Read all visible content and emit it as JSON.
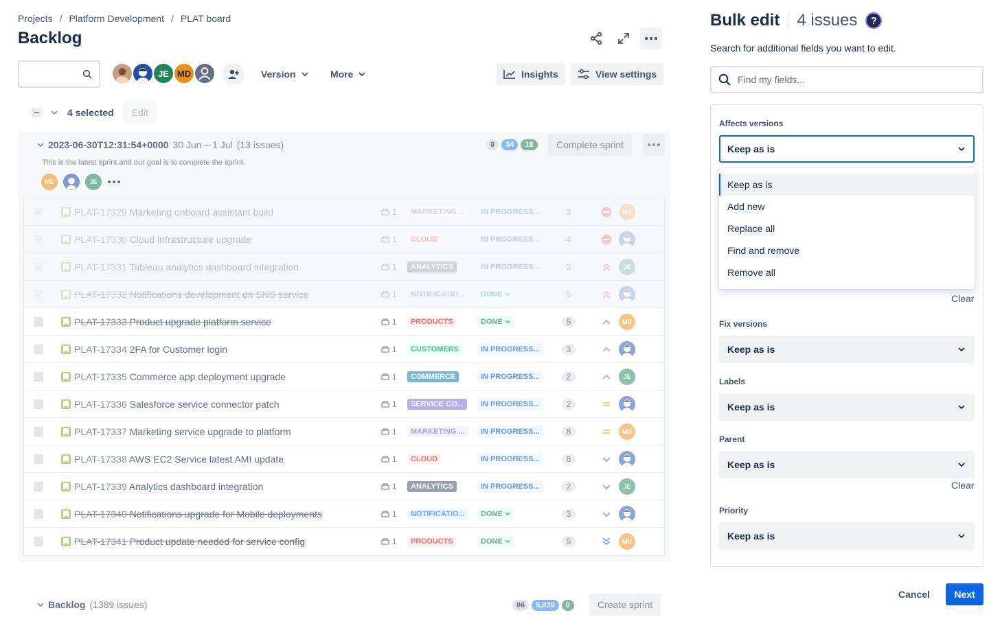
{
  "breadcrumb": [
    "Projects",
    "Platform Development",
    "PLAT board"
  ],
  "page_title": "Backlog",
  "toolbar": {
    "version_label": "Version",
    "more_label": "More",
    "insights_label": "Insights",
    "view_settings_label": "View settings"
  },
  "people": [
    {
      "initials": "",
      "color": "#c69d7d",
      "icon": "photo-avatar"
    },
    {
      "initials": "",
      "color": "#1e4fa8",
      "icon": "illustrated-avatar"
    },
    {
      "initials": "JE",
      "color": "#1f845a"
    },
    {
      "initials": "MD",
      "color": "#f18d13"
    },
    {
      "initials": "",
      "color": "#626f86",
      "icon": "unassigned-avatar"
    }
  ],
  "selection": {
    "count_label": "4 selected",
    "edit_label": "Edit"
  },
  "sprint": {
    "name": "2023-06-30T12:31:54+0000",
    "dates": "30 Jun – 1 Jul",
    "issue_count": "(13 issues)",
    "goal": "This is the latest sprint and our goal is to complete the sprint.",
    "avatars": [
      "MD",
      "",
      "JE"
    ],
    "counts": {
      "todo": "0",
      "in_progress": "34",
      "done": "18"
    },
    "complete_label": "Complete sprint"
  },
  "issues": [
    {
      "key": "PLAT-17329",
      "summary": "Marketing onboard assistant build",
      "points": "1",
      "label": "MARKETING ...",
      "label_style": "purple-light",
      "status": "IN PROGRESS...",
      "status_type": "progress",
      "estimate": "3",
      "priority": "blocker",
      "assignee": "MD",
      "selected": true,
      "done": false
    },
    {
      "key": "PLAT-17330",
      "summary": "Cloud infrastructure upgrade",
      "points": "1",
      "label": "CLOUD",
      "label_style": "red-light",
      "status": "IN PROGRESS...",
      "status_type": "progress",
      "estimate": "4",
      "priority": "blocker",
      "assignee": "",
      "selected": true,
      "done": false
    },
    {
      "key": "PLAT-17331",
      "summary": "Tableau analytics dashboard integration",
      "points": "1",
      "label": "ANALYTICS",
      "label_style": "grey-bold",
      "status": "IN PROGRESS...",
      "status_type": "progress",
      "estimate": "2",
      "priority": "highest",
      "assignee": "JE",
      "selected": true,
      "done": false
    },
    {
      "key": "PLAT-17332",
      "summary": "Notifications development on SNS service",
      "points": "1",
      "label": "NOTIFICATIO...",
      "label_style": "blue-light",
      "status": "DONE",
      "status_type": "done",
      "estimate": "5",
      "priority": "highest",
      "assignee": "",
      "selected": true,
      "done": true
    },
    {
      "key": "PLAT-17333",
      "summary": "Product upgrade platform service",
      "points": "1",
      "label": "PRODUCTS",
      "label_style": "red-light",
      "status": "DONE",
      "status_type": "done",
      "estimate": "5",
      "priority": "high",
      "assignee": "MD",
      "selected": false,
      "done": true
    },
    {
      "key": "PLAT-17334",
      "summary": "2FA for Customer login",
      "points": "1",
      "label": "CUSTOMERS",
      "label_style": "green-light",
      "status": "IN PROGRESS...",
      "status_type": "progress",
      "estimate": "3",
      "priority": "high",
      "assignee": "",
      "selected": false,
      "done": false
    },
    {
      "key": "PLAT-17335",
      "summary": "Commerce app deployment upgrade",
      "points": "1",
      "label": "COMMERCE",
      "label_style": "teal-bold",
      "status": "IN PROGRESS...",
      "status_type": "progress",
      "estimate": "2",
      "priority": "high",
      "assignee": "JE",
      "selected": false,
      "done": false
    },
    {
      "key": "PLAT-17336",
      "summary": "Salesforce service connector patch",
      "points": "1",
      "label": "SERVICE CO...",
      "label_style": "purple-bold",
      "status": "IN PROGRESS...",
      "status_type": "progress",
      "estimate": "2",
      "priority": "medium",
      "assignee": "",
      "selected": false,
      "done": false
    },
    {
      "key": "PLAT-17337",
      "summary": "Marketing service upgrade to platform",
      "points": "1",
      "label": "MARKETING ...",
      "label_style": "purple-light",
      "status": "IN PROGRESS...",
      "status_type": "progress",
      "estimate": "8",
      "priority": "medium",
      "assignee": "MD",
      "selected": false,
      "done": false
    },
    {
      "key": "PLAT-17338",
      "summary": "AWS EC2 Service latest AMI update",
      "points": "1",
      "label": "CLOUD",
      "label_style": "red-light",
      "status": "IN PROGRESS...",
      "status_type": "progress",
      "estimate": "8",
      "priority": "low",
      "assignee": "",
      "selected": false,
      "done": false
    },
    {
      "key": "PLAT-17339",
      "summary": "Analytics dashboard integration",
      "points": "1",
      "label": "ANALYTICS",
      "label_style": "grey-bold",
      "status": "IN PROGRESS...",
      "status_type": "progress",
      "estimate": "2",
      "priority": "low",
      "assignee": "JE",
      "selected": false,
      "done": false
    },
    {
      "key": "PLAT-17340",
      "summary": "Notifications upgrade for Mobile deployments",
      "points": "1",
      "label": "NOTIFICATIO...",
      "label_style": "blue-light",
      "status": "DONE",
      "status_type": "done",
      "estimate": "3",
      "priority": "low",
      "assignee": "",
      "selected": false,
      "done": true
    },
    {
      "key": "PLAT-17341",
      "summary": "Product update needed for service config",
      "points": "1",
      "label": "PRODUCTS",
      "label_style": "red-light",
      "status": "DONE",
      "status_type": "done",
      "estimate": "5",
      "priority": "lowest",
      "assignee": "MD",
      "selected": false,
      "done": true
    }
  ],
  "backlog": {
    "name": "Backlog",
    "issue_count": "(1389 issues)",
    "counts": {
      "todo": "86",
      "in_progress": "5,839",
      "done": "0"
    },
    "create_label": "Create sprint"
  },
  "bulk_edit": {
    "title": "Bulk edit",
    "issues_label": "4 issues",
    "help_label": "?",
    "description": "Search for additional fields you want to edit.",
    "find_placeholder": "Find my fields...",
    "fields": {
      "affects_versions": {
        "label": "Affects versions",
        "value": "Keep as is",
        "clear": "Clear"
      },
      "fix_versions": {
        "label": "Fix versions",
        "value": "Keep as is"
      },
      "labels": {
        "label": "Labels",
        "value": "Keep as is"
      },
      "parent": {
        "label": "Parent",
        "value": "Keep as is",
        "clear": "Clear"
      },
      "priority": {
        "label": "Priority",
        "value": "Keep as is"
      }
    },
    "menu_options": [
      "Keep as is",
      "Add new",
      "Replace all",
      "Find and remove",
      "Remove all"
    ],
    "cancel_label": "Cancel",
    "next_label": "Next"
  },
  "colors": {
    "primary": "#0c66e4",
    "selected_row": "#e9f2ff",
    "progress_status": "#0055cc",
    "done_status": "#216e4e"
  }
}
